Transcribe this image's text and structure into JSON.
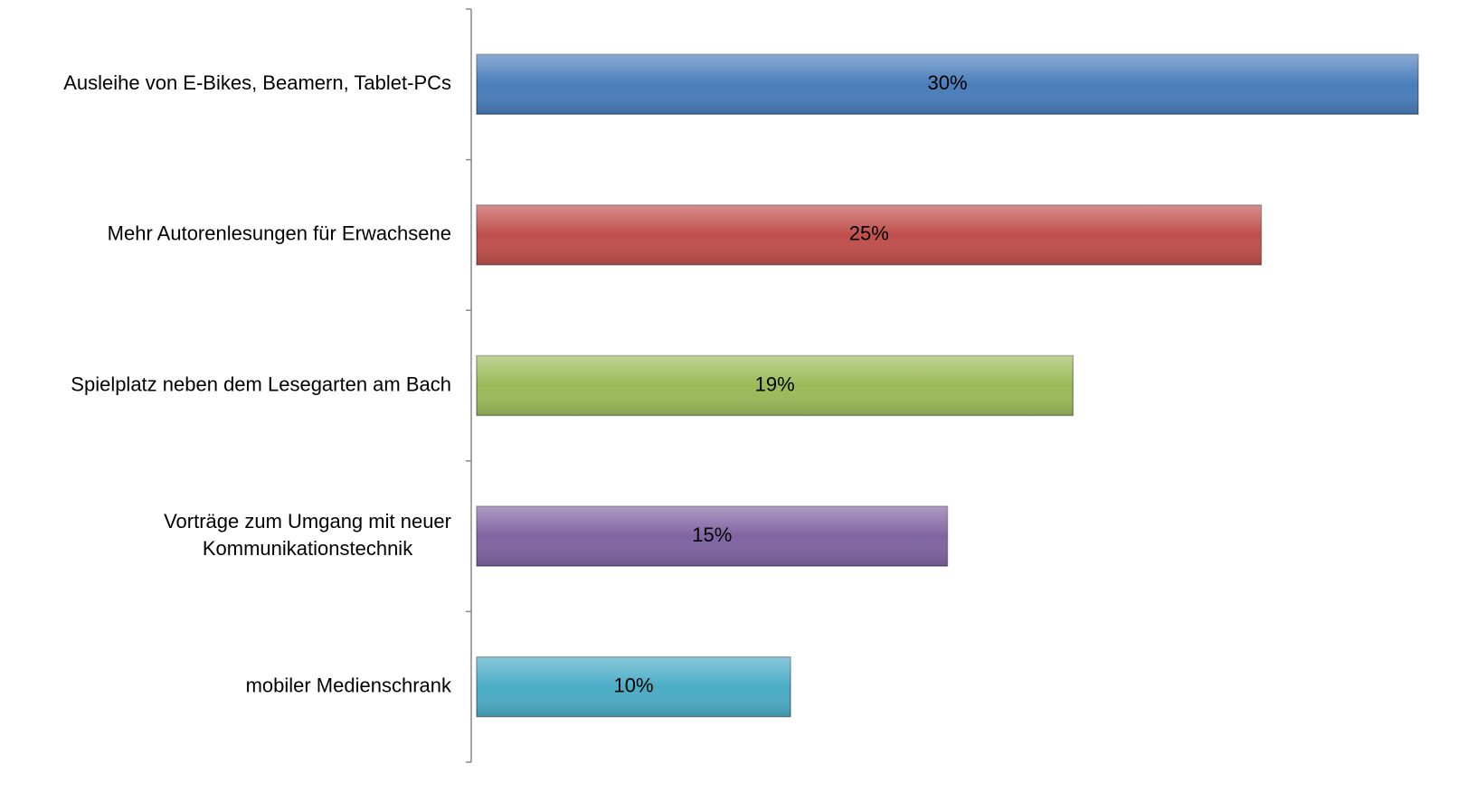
{
  "chart_data": {
    "type": "hbar",
    "categories": [
      "Ausleihe von E-Bikes, Beamern, Tablet-PCs",
      "Mehr Autorenlesungen für Erwachsene",
      "Spielplatz neben dem Lesegarten am Bach",
      "Vorträge zum Umgang mit neuer\nKommunikationstechnik",
      "mobiler Medienschrank"
    ],
    "values": [
      30,
      25,
      19,
      15,
      10
    ],
    "value_labels": [
      "30%",
      "25%",
      "19%",
      "15%",
      "10%"
    ],
    "colors": [
      "#4a7ebb",
      "#c0504d",
      "#9bbb59",
      "#8064a2",
      "#4bacc6"
    ],
    "xlim": [
      0,
      30
    ]
  }
}
